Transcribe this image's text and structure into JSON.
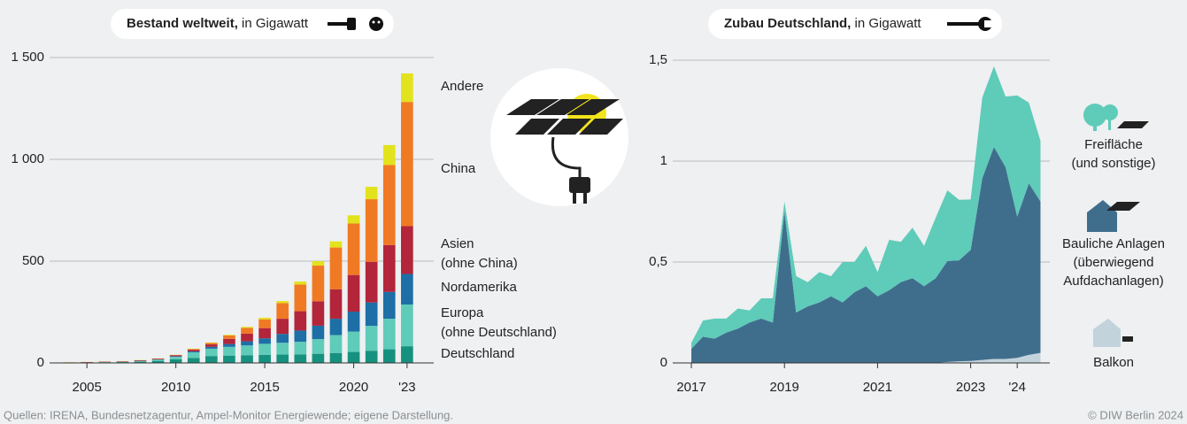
{
  "chart_data": [
    {
      "type": "bar",
      "title": "Bestand weltweit,",
      "unit": "in Gigawatt",
      "x": [
        2004,
        2005,
        2006,
        2007,
        2008,
        2009,
        2010,
        2011,
        2012,
        2013,
        2014,
        2015,
        2016,
        2017,
        2018,
        2019,
        2020,
        2021,
        2022,
        2023
      ],
      "series": [
        {
          "name": "Deutschland",
          "color": "#17917f",
          "values": [
            1,
            2,
            3,
            4,
            6,
            10,
            18,
            25,
            34,
            36,
            38,
            40,
            41,
            42,
            45,
            49,
            54,
            60,
            67,
            82
          ]
        },
        {
          "name": "Europa",
          "sublabel": "(ohne Deutschland)",
          "color": "#5fcbb9",
          "values": [
            0.3,
            0.5,
            0.7,
            1,
            3,
            6,
            12,
            27,
            36,
            43,
            48,
            54,
            58,
            62,
            72,
            88,
            100,
            122,
            150,
            205
          ]
        },
        {
          "name": "Nordamerika",
          "color": "#1d6fa6",
          "values": [
            0.2,
            0.3,
            0.4,
            0.6,
            1,
            1.5,
            3,
            5,
            9,
            14,
            20,
            27,
            43,
            55,
            66,
            80,
            98,
            115,
            132,
            150
          ]
        },
        {
          "name": "Asien",
          "sublabel": "(ohne China)",
          "color": "#b3253b",
          "values": [
            1,
            1.5,
            2,
            2.5,
            3,
            3.5,
            5,
            8,
            12,
            25,
            38,
            50,
            75,
            95,
            120,
            145,
            180,
            200,
            230,
            235
          ]
        },
        {
          "name": "China",
          "color": "#f07a23",
          "values": [
            0.1,
            0.1,
            0.1,
            0.1,
            0.2,
            0.4,
            1,
            3,
            7,
            17,
            28,
            43,
            77,
            131,
            175,
            205,
            253,
            307,
            393,
            610
          ]
        },
        {
          "name": "Andere",
          "color": "#e2e31c",
          "values": [
            0.5,
            0.5,
            0.6,
            0.8,
            1,
            1,
            1,
            2,
            2,
            3,
            5,
            8,
            10,
            15,
            22,
            30,
            40,
            61,
            98,
            140
          ]
        }
      ],
      "xlim": [
        2002.9,
        2024.5
      ],
      "xticks": [
        2005,
        2010,
        2015,
        2020,
        {
          "value": 2023,
          "label": "'23"
        }
      ],
      "ylim": [
        0,
        1500
      ],
      "yticks": [
        0,
        500,
        {
          "value": 1000,
          "label": "1 000"
        },
        {
          "value": 1500,
          "label": "1 500"
        }
      ],
      "grid": true
    },
    {
      "type": "area",
      "title": "Zubau Deutschland,",
      "unit": "in Gigawatt",
      "x": [
        2017,
        2017.25,
        2017.5,
        2017.75,
        2018,
        2018.25,
        2018.5,
        2018.75,
        2019,
        2019.25,
        2019.5,
        2019.75,
        2020,
        2020.25,
        2020.5,
        2020.75,
        2021,
        2021.25,
        2021.5,
        2021.75,
        2022,
        2022.25,
        2022.5,
        2022.75,
        2023,
        2023.25,
        2023.5,
        2023.75,
        2024,
        2024.25,
        2024.5
      ],
      "series": [
        {
          "name": "Balkon",
          "color": "#c3d3dc",
          "values": [
            0,
            0,
            0,
            0,
            0,
            0,
            0,
            0,
            0,
            0,
            0,
            0,
            0,
            0,
            0,
            0,
            0,
            0,
            0,
            0,
            0,
            0,
            0.005,
            0.008,
            0.01,
            0.015,
            0.02,
            0.02,
            0.025,
            0.04,
            0.05
          ]
        },
        {
          "name": "Bauliche Anlagen",
          "sublabel": [
            "(überwiegend",
            "Aufdachanlagen)"
          ],
          "color": "#3f6e8d",
          "values": [
            0.07,
            0.13,
            0.12,
            0.15,
            0.17,
            0.2,
            0.22,
            0.2,
            0.75,
            0.25,
            0.28,
            0.3,
            0.33,
            0.3,
            0.35,
            0.38,
            0.33,
            0.36,
            0.4,
            0.42,
            0.38,
            0.42,
            0.5,
            0.5,
            0.55,
            0.9,
            1.05,
            0.95,
            0.7,
            0.85,
            0.75
          ]
        },
        {
          "name": "Freifläche",
          "sublabel": [
            "(und sonstige)"
          ],
          "color": "#5fcbb9",
          "values": [
            0.03,
            0.08,
            0.1,
            0.07,
            0.1,
            0.06,
            0.1,
            0.12,
            0.05,
            0.18,
            0.12,
            0.15,
            0.1,
            0.2,
            0.15,
            0.2,
            0.12,
            0.25,
            0.2,
            0.25,
            0.2,
            0.3,
            0.35,
            0.3,
            0.25,
            0.4,
            0.4,
            0.35,
            0.6,
            0.4,
            0.3
          ]
        }
      ],
      "xlim": [
        2016.6,
        2024.7
      ],
      "xticks": [
        2017,
        2019,
        2021,
        2023,
        {
          "value": 2024,
          "label": "'24"
        }
      ],
      "ylim": [
        0,
        1.5
      ],
      "yticks": [
        0,
        {
          "value": 0.5,
          "label": "0,5"
        },
        1,
        {
          "value": 1.5,
          "label": "1,5"
        }
      ],
      "grid": true
    }
  ],
  "footer": {
    "source": "Quellen: IRENA, Bundesnetzagentur, Ampel-Monitor Energiewende; eigene Darstellung.",
    "copyright": "© DIW Berlin 2024"
  }
}
